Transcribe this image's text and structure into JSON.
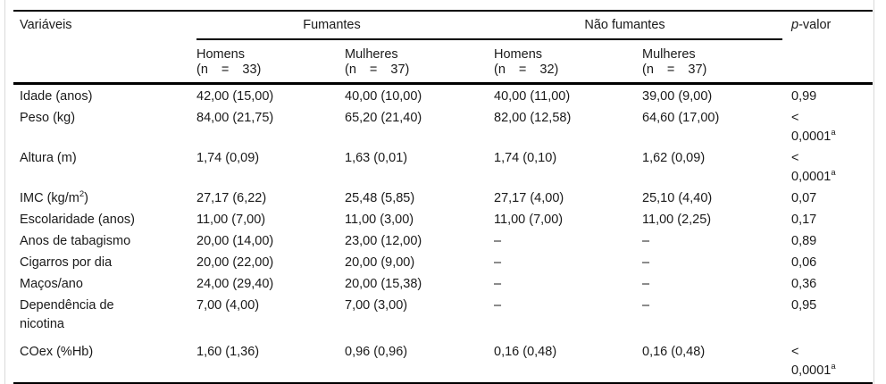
{
  "colors": {
    "ink": "#1a1a1a",
    "rule": "#000000",
    "page_edge": "#d9d9d9"
  },
  "table": {
    "header": {
      "variables_label": "Variáveis",
      "group_fumantes": "Fumantes",
      "group_nao_fumantes": "Não fumantes",
      "pvalue_italic": "p",
      "pvalue_suffix": "-valor",
      "subheaders": [
        {
          "sex": "Homens",
          "n": "(n = 33)"
        },
        {
          "sex": "Mulheres",
          "n": "(n = 37)"
        },
        {
          "sex": "Homens",
          "n": "(n = 32)"
        },
        {
          "sex": "Mulheres",
          "n": "(n = 37)"
        }
      ]
    },
    "rows": [
      {
        "label": "Idade (anos)",
        "c1": "42,00 (15,00)",
        "c2": "40,00 (10,00)",
        "c3": "40,00 (11,00)",
        "c4": "39,00 (9,00)",
        "p": "0,99"
      },
      {
        "label": "Peso (kg)",
        "c1": "84,00 (21,75)",
        "c2": "65,20 (21,40)",
        "c3": "82,00 (12,58)",
        "c4": "64,60 (17,00)",
        "p_line1": "<",
        "p_line2": "0,0001",
        "p_sup": "a"
      },
      {
        "label": "Altura (m)",
        "c1": "1,74 (0,09)",
        "c2": "1,63 (0,01)",
        "c3": "1,74 (0,10)",
        "c4": "1,62 (0,09)",
        "p_line1": "<",
        "p_line2": "0,0001",
        "p_sup": "a"
      },
      {
        "label_pre": "IMC (kg/m",
        "label_sup": "2",
        "label_post": ")",
        "c1": "27,17 (6,22)",
        "c2": "25,48 (5,85)",
        "c3": "27,17 (4,00)",
        "c4": "25,10 (4,40)",
        "p": "0,07"
      },
      {
        "label": "Escolaridade (anos)",
        "c1": "11,00 (7,00)",
        "c2": "11,00 (3,00)",
        "c3": "11,00 (7,00)",
        "c4": "11,00 (2,25)",
        "p": "0,17"
      },
      {
        "label": "Anos de tabagismo",
        "c1": "20,00 (14,00)",
        "c2": "23,00 (12,00)",
        "c3": "–",
        "c4": "–",
        "p": "0,89"
      },
      {
        "label": "Cigarros por dia",
        "c1": "20,00 (22,00)",
        "c2": "20,00 (9,00)",
        "c3": "–",
        "c4": "–",
        "p": "0,06"
      },
      {
        "label": "Maços/ano",
        "c1": "24,00 (29,40)",
        "c2": "20,00 (15,38)",
        "c3": "–",
        "c4": "–",
        "p": "0,36"
      },
      {
        "label": "Dependência de nicotina",
        "c1": "7,00 (4,00)",
        "c2": "7,00 (3,00)",
        "c3": "–",
        "c4": "–",
        "p": "0,95"
      },
      {
        "label": "COex (%Hb)",
        "c1": "1,60 (1,36)",
        "c2": "0,96 (0,96)",
        "c3": "0,16 (0,48)",
        "c4": "0,16 (0,48)",
        "p_line1": "<",
        "p_line2": "0,0001",
        "p_sup": "a"
      }
    ]
  }
}
